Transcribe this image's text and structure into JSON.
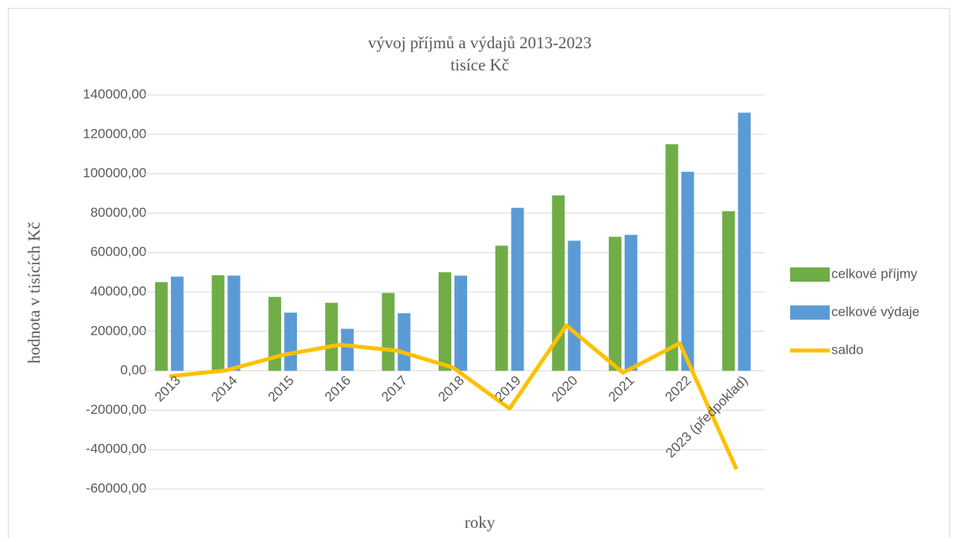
{
  "chart_data": {
    "type": "bar",
    "title": "vývoj příjmů a výdajů 2013-2023",
    "subtitle": "tisíce Kč",
    "y_label": "hodnota v tisících Kč",
    "x_label": "roky",
    "categories": [
      "2013",
      "2014",
      "2015",
      "2016",
      "2017",
      "2018",
      "2019",
      "2020",
      "2021",
      "2022",
      "2023 (předpoklad)"
    ],
    "series": [
      {
        "name": "celkové příjmy",
        "type": "bar",
        "color": "#70ad47",
        "values": [
          45000,
          48500,
          37500,
          34500,
          39500,
          50000,
          63500,
          89000,
          68000,
          115000,
          81000
        ]
      },
      {
        "name": "celkové výdaje",
        "type": "bar",
        "color": "#5b9bd5",
        "values": [
          47800,
          48300,
          29500,
          21300,
          29200,
          48300,
          82700,
          66000,
          69000,
          101000,
          131000
        ]
      },
      {
        "name": "saldo",
        "type": "line",
        "color": "#ffc000",
        "values": [
          -2800,
          200,
          8000,
          13200,
          10300,
          1700,
          -19200,
          23000,
          -1000,
          14000,
          -50000
        ]
      }
    ],
    "ylim": [
      -60000,
      140000
    ],
    "yticks": [
      {
        "value": -60000,
        "label": "-60000,00"
      },
      {
        "value": -40000,
        "label": "-40000,00"
      },
      {
        "value": -20000,
        "label": "-20000,00"
      },
      {
        "value": 0,
        "label": "0,00"
      },
      {
        "value": 20000,
        "label": "20000,00"
      },
      {
        "value": 40000,
        "label": "40000,00"
      },
      {
        "value": 60000,
        "label": "60000,00"
      },
      {
        "value": 80000,
        "label": "80000,00"
      },
      {
        "value": 100000,
        "label": "100000,00"
      },
      {
        "value": 120000,
        "label": "120000,00"
      },
      {
        "value": 140000,
        "label": "140000,00"
      }
    ],
    "grid": true,
    "legend": "right"
  }
}
